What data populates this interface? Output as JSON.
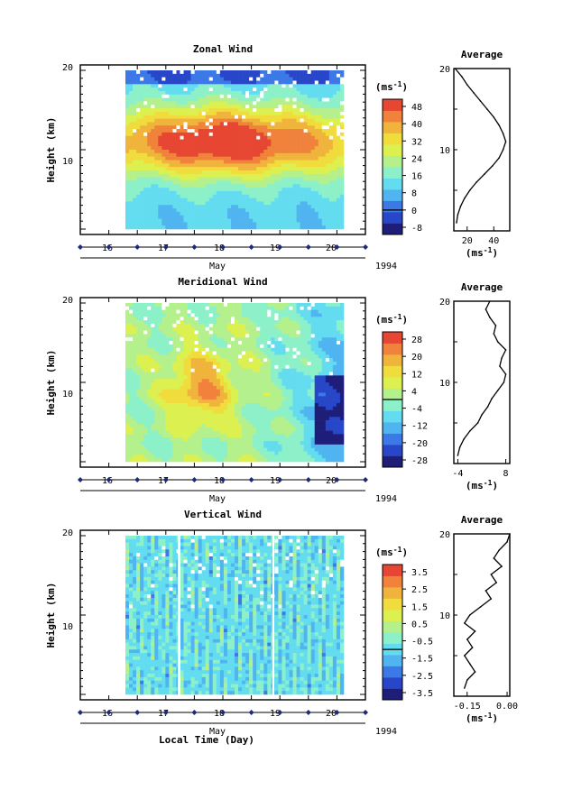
{
  "chart_data": {
    "type": "heatmap",
    "shared": {
      "y_ticks": [
        "20",
        "10"
      ],
      "day_ticks": [
        "16",
        "17",
        "18",
        "19",
        "20"
      ],
      "month_label": "May",
      "year_label": "1994",
      "ylabel": "Height (km)",
      "units_label": "(ms",
      "units_sup": "-1",
      "units_close": ")",
      "xlabel": "Local Time (Day)",
      "colors": [
        "#1e1e78",
        "#2846c8",
        "#3c78e6",
        "#50b4f0",
        "#64dcf0",
        "#8cf0c8",
        "#b4f08c",
        "#dcf050",
        "#f0dc3c",
        "#f0b43c",
        "#f0823c",
        "#e64632"
      ]
    },
    "panels": [
      {
        "title": "Zonal Wind",
        "colorbar_ticks": [
          "48",
          "40",
          "32",
          "24",
          "16",
          "8",
          "0",
          "-8"
        ],
        "profile_title": "Average",
        "profile_x_ticks": [
          "20",
          "40"
        ],
        "profile_y_ticks": [
          "20",
          "10"
        ],
        "profile_xlabel": "(ms",
        "profile_xsup": "-1",
        "profile_xclose": ")",
        "profile_x_range": [
          10,
          52
        ],
        "profile_x_tick_values": [
          20,
          40
        ],
        "profile": {
          "height_km": [
            1,
            2,
            3,
            4,
            5,
            6,
            7,
            8,
            9,
            10,
            11,
            12,
            13,
            14,
            15,
            16,
            17,
            18,
            19,
            20
          ],
          "value": [
            12,
            13,
            15,
            18,
            22,
            27,
            33,
            39,
            44,
            47,
            49,
            47,
            44,
            40,
            35,
            30,
            25,
            20,
            16,
            11
          ]
        }
      },
      {
        "title": "Meridional Wind",
        "colorbar_ticks": [
          "28",
          "20",
          "12",
          "4",
          "-4",
          "-12",
          "-20",
          "-28"
        ],
        "profile_title": "Average",
        "profile_x_ticks": [
          "-4",
          "8"
        ],
        "profile_y_ticks": [
          "20",
          "10"
        ],
        "profile_xlabel": "(ms",
        "profile_xsup": "-1",
        "profile_xclose": ")",
        "profile_x_range": [
          -5,
          9
        ],
        "profile_x_tick_values": [
          -4,
          8
        ],
        "profile": {
          "height_km": [
            1,
            2,
            3,
            4,
            5,
            6,
            7,
            8,
            9,
            10,
            11,
            12,
            13,
            14,
            15,
            16,
            17,
            18,
            19,
            20
          ],
          "value": [
            -4,
            -3.5,
            -2.5,
            -1,
            1,
            2,
            3.5,
            4.5,
            6,
            7.5,
            8,
            6.5,
            7,
            8,
            6,
            5,
            5.5,
            4,
            3,
            4
          ]
        }
      },
      {
        "title": "Vertical Wind",
        "colorbar_ticks": [
          "3.5",
          "2.5",
          "1.5",
          "0.5",
          "-0.5",
          "-1.5",
          "-2.5",
          "-3.5"
        ],
        "profile_title": "Average",
        "profile_x_ticks": [
          "-0.15",
          "0.00"
        ],
        "profile_y_ticks": [
          "20",
          "10"
        ],
        "profile_xlabel": "(ms",
        "profile_xsup": "-1",
        "profile_xclose": ")",
        "profile_x_range": [
          -0.2,
          0.01
        ],
        "profile_x_tick_values": [
          -0.15,
          0.0
        ],
        "profile": {
          "height_km": [
            1,
            2,
            3,
            4,
            5,
            6,
            7,
            8,
            9,
            10,
            11,
            12,
            13,
            14,
            15,
            16,
            17,
            18,
            19,
            20
          ],
          "value": [
            -0.16,
            -0.15,
            -0.12,
            -0.14,
            -0.16,
            -0.13,
            -0.15,
            -0.12,
            -0.16,
            -0.14,
            -0.1,
            -0.06,
            -0.08,
            -0.04,
            -0.06,
            -0.02,
            -0.05,
            -0.03,
            0.0,
            0.01
          ]
        }
      }
    ]
  }
}
